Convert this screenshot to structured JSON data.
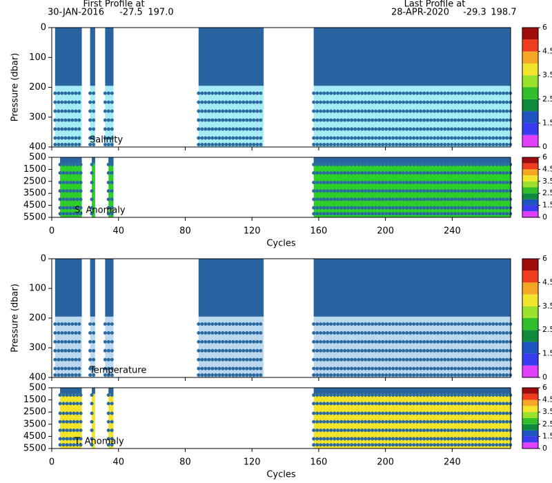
{
  "header": {
    "first_label": "First Profile at",
    "first_date": "30-JAN-2016",
    "first_lat": "-27.5",
    "first_lon": "197.0",
    "last_label": "Last Profile at",
    "last_date": "28-APR-2020",
    "last_lat": "-29.3",
    "last_lon": "198.7"
  },
  "chart_data": [
    {
      "type": "section",
      "label": "Salinity",
      "ylabel": "Pressure (dbar)",
      "ylim": [
        0,
        400
      ],
      "yticks": [
        0,
        100,
        200,
        300,
        400
      ],
      "xlim": [
        0,
        275
      ],
      "xticks": [
        0,
        40,
        80,
        120,
        160,
        200,
        240
      ],
      "mask_to": 195,
      "color": "#a6ecf4",
      "segments": [
        [
          2,
          18
        ],
        [
          23,
          26
        ],
        [
          32,
          37
        ],
        [
          88,
          127
        ],
        [
          157,
          275
        ]
      ],
      "levels": [
        220,
        250,
        280,
        310,
        340,
        370,
        392
      ],
      "colorbar_ticks": [
        0,
        1.5,
        2.5,
        3.5,
        4.5,
        6
      ]
    },
    {
      "type": "section",
      "label": "S. Anomaly",
      "xlabel": "Cycles",
      "ylim": [
        500,
        5500
      ],
      "yticks": [
        500,
        1500,
        2500,
        3500,
        4500,
        5500
      ],
      "xlim": [
        0,
        275
      ],
      "xticks": [
        0,
        40,
        80,
        120,
        160,
        200,
        240
      ],
      "mask_to": 1000,
      "color": "#2fcf2a",
      "segments": [
        [
          5,
          18
        ],
        [
          24,
          26
        ],
        [
          34,
          37
        ],
        [
          157,
          275
        ]
      ],
      "levels": [
        1100,
        1800,
        2600,
        3300,
        4000,
        4700,
        5200
      ],
      "colorbar_ticks": [
        0,
        1.5,
        2.5,
        3.5,
        4.5,
        6
      ]
    },
    {
      "type": "section",
      "label": "Temperature",
      "ylabel": "Pressure (dbar)",
      "ylim": [
        0,
        400
      ],
      "yticks": [
        0,
        100,
        200,
        300,
        400
      ],
      "xlim": [
        0,
        275
      ],
      "xticks": [
        0,
        40,
        80,
        120,
        160,
        200,
        240
      ],
      "mask_to": 195,
      "color": "#bcd8ee",
      "segments": [
        [
          2,
          18
        ],
        [
          23,
          26
        ],
        [
          32,
          37
        ],
        [
          88,
          127
        ],
        [
          157,
          275
        ]
      ],
      "levels": [
        220,
        250,
        280,
        310,
        340,
        370,
        392
      ],
      "colorbar_ticks": [
        0,
        1.5,
        2.5,
        3.5,
        4.5,
        6
      ]
    },
    {
      "type": "section",
      "label": "T. Anomaly",
      "xlabel": "Cycles",
      "ylim": [
        500,
        5500
      ],
      "yticks": [
        500,
        1500,
        2500,
        3500,
        4500,
        5500
      ],
      "xlim": [
        0,
        275
      ],
      "xticks": [
        0,
        40,
        80,
        120,
        160,
        200,
        240
      ],
      "mask_to": 1000,
      "color": "#f2e42a",
      "segments": [
        [
          5,
          18
        ],
        [
          24,
          26
        ],
        [
          34,
          37
        ],
        [
          157,
          275
        ]
      ],
      "levels": [
        1100,
        1800,
        2600,
        3300,
        4000,
        4700,
        5200
      ],
      "colorbar_ticks": [
        0,
        1.5,
        2.5,
        3.5,
        4.5,
        6
      ]
    }
  ]
}
